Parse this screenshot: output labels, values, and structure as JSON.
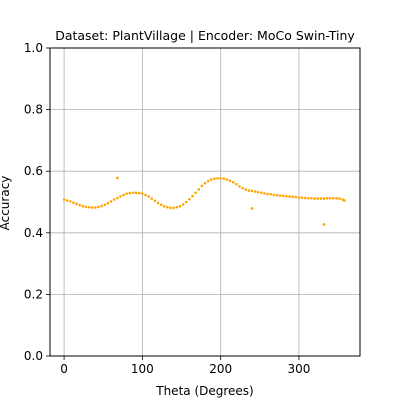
{
  "chart_data": {
    "type": "scatter",
    "title": "Dataset: PlantVillage | Encoder: MoCo Swin-Tiny",
    "xlabel": "Theta (Degrees)",
    "ylabel": "Accuracy",
    "xlim": [
      -18,
      378
    ],
    "ylim": [
      0.0,
      1.0
    ],
    "xticks": [
      0,
      100,
      200,
      300
    ],
    "yticks": [
      0.0,
      0.2,
      0.4,
      0.6,
      0.8,
      1.0
    ],
    "xtick_labels": [
      "0",
      "100",
      "200",
      "300"
    ],
    "ytick_labels": [
      "0.0",
      "0.2",
      "0.4",
      "0.6",
      "0.8",
      "1.0"
    ],
    "grid": true,
    "point_color": "#ffa500",
    "series": [
      {
        "x": [
          0,
          4,
          8,
          12,
          16,
          20,
          24,
          28,
          32,
          36,
          40,
          44,
          48,
          52,
          56,
          60,
          64,
          68,
          72,
          76,
          80,
          84,
          88,
          92,
          96,
          100,
          104,
          108,
          112,
          116,
          120,
          124,
          128,
          132,
          136,
          140,
          144,
          148,
          152,
          156,
          160,
          164,
          168,
          172,
          176,
          180,
          184,
          188,
          192,
          196,
          200,
          204,
          208,
          212,
          216,
          220,
          224,
          228,
          232,
          236,
          240,
          244,
          248,
          252,
          256,
          260,
          264,
          268,
          272,
          276,
          280,
          284,
          288,
          292,
          296,
          300,
          304,
          308,
          312,
          316,
          320,
          324,
          328,
          332,
          336,
          340,
          344,
          348,
          352,
          356,
          358
        ],
        "y": [
          0.508,
          0.505,
          0.502,
          0.498,
          0.494,
          0.49,
          0.486,
          0.484,
          0.483,
          0.482,
          0.482,
          0.484,
          0.487,
          0.491,
          0.496,
          0.502,
          0.508,
          0.513,
          0.518,
          0.523,
          0.527,
          0.529,
          0.53,
          0.53,
          0.529,
          0.527,
          0.523,
          0.518,
          0.511,
          0.504,
          0.497,
          0.491,
          0.486,
          0.483,
          0.481,
          0.481,
          0.483,
          0.486,
          0.492,
          0.5,
          0.509,
          0.519,
          0.53,
          0.541,
          0.552,
          0.561,
          0.568,
          0.573,
          0.576,
          0.577,
          0.577,
          0.576,
          0.573,
          0.569,
          0.564,
          0.558,
          0.551,
          0.545,
          0.54,
          0.537,
          0.536,
          0.534,
          0.532,
          0.53,
          0.528,
          0.526,
          0.525,
          0.523,
          0.522,
          0.521,
          0.52,
          0.519,
          0.518,
          0.517,
          0.516,
          0.515,
          0.514,
          0.513,
          0.512,
          0.512,
          0.511,
          0.511,
          0.511,
          0.511,
          0.512,
          0.512,
          0.512,
          0.512,
          0.511,
          0.508,
          0.505
        ]
      },
      {
        "x": [
          68,
          240,
          332
        ],
        "y": [
          0.578,
          0.479,
          0.427
        ]
      }
    ]
  }
}
